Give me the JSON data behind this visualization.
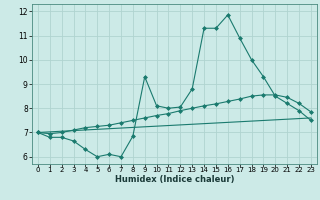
{
  "title": "",
  "xlabel": "Humidex (Indice chaleur)",
  "bg_color": "#cceae7",
  "grid_color": "#b0d4d0",
  "line_color": "#1a7a6e",
  "xlim": [
    -0.5,
    23.5
  ],
  "ylim": [
    5.7,
    12.3
  ],
  "xticks": [
    0,
    1,
    2,
    3,
    4,
    5,
    6,
    7,
    8,
    9,
    10,
    11,
    12,
    13,
    14,
    15,
    16,
    17,
    18,
    19,
    20,
    21,
    22,
    23
  ],
  "yticks": [
    6,
    7,
    8,
    9,
    10,
    11,
    12
  ],
  "line1_x": [
    0,
    1,
    2,
    3,
    4,
    5,
    6,
    7,
    8,
    9,
    10,
    11,
    12,
    13,
    14,
    15,
    16,
    17,
    18,
    19,
    20,
    21,
    22,
    23
  ],
  "line1_y": [
    7.0,
    6.8,
    6.8,
    6.65,
    6.3,
    6.0,
    6.1,
    6.0,
    6.85,
    9.3,
    8.1,
    8.0,
    8.05,
    8.8,
    11.3,
    11.3,
    11.85,
    10.9,
    10.0,
    9.3,
    8.5,
    8.2,
    7.9,
    7.5
  ],
  "line2_x": [
    0,
    1,
    2,
    3,
    4,
    5,
    6,
    7,
    8,
    9,
    10,
    11,
    12,
    13,
    14,
    15,
    16,
    17,
    18,
    19,
    20,
    21,
    22,
    23
  ],
  "line2_y": [
    7.0,
    6.95,
    7.0,
    7.1,
    7.2,
    7.25,
    7.3,
    7.4,
    7.5,
    7.6,
    7.7,
    7.78,
    7.9,
    8.0,
    8.1,
    8.18,
    8.28,
    8.38,
    8.5,
    8.55,
    8.55,
    8.45,
    8.2,
    7.85
  ],
  "line3_x": [
    0,
    23
  ],
  "line3_y": [
    7.0,
    7.6
  ]
}
